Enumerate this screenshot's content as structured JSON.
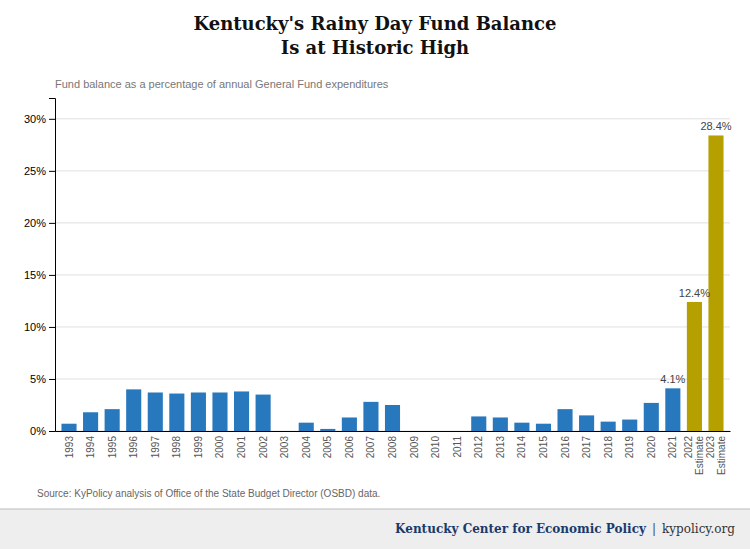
{
  "chart_data": {
    "type": "bar",
    "title": [
      "Kentucky's Rainy Day Fund Balance",
      "Is at Historic High"
    ],
    "subtitle": "Fund balance as a percentage of annual General Fund expenditures",
    "categories": [
      "1993",
      "1994",
      "1995",
      "1996",
      "1997",
      "1998",
      "1999",
      "2000",
      "2001",
      "2002",
      "2003",
      "2004",
      "2005",
      "2006",
      "2007",
      "2008",
      "2009",
      "2010",
      "2011",
      "2012",
      "2013",
      "2014",
      "2015",
      "2016",
      "2017",
      "2018",
      "2019",
      "2020",
      "2021",
      "2022\nEstimate",
      "2023\nEstimate"
    ],
    "values": [
      0.7,
      1.8,
      2.1,
      4.0,
      3.7,
      3.6,
      3.7,
      3.7,
      3.8,
      3.5,
      0.0,
      0.8,
      0.2,
      1.3,
      2.8,
      2.5,
      0.0,
      0.0,
      0.0,
      1.4,
      1.3,
      0.8,
      0.7,
      2.1,
      1.5,
      0.9,
      1.1,
      2.7,
      4.1,
      12.4,
      28.4
    ],
    "value_labels": [
      null,
      null,
      null,
      null,
      null,
      null,
      null,
      null,
      null,
      null,
      null,
      null,
      null,
      null,
      null,
      null,
      null,
      null,
      null,
      null,
      null,
      null,
      null,
      null,
      null,
      null,
      null,
      null,
      "4.1%",
      "12.4%",
      "28.4%"
    ],
    "colors": [
      "#2878bd",
      "#2878bd",
      "#2878bd",
      "#2878bd",
      "#2878bd",
      "#2878bd",
      "#2878bd",
      "#2878bd",
      "#2878bd",
      "#2878bd",
      "#2878bd",
      "#2878bd",
      "#2878bd",
      "#2878bd",
      "#2878bd",
      "#2878bd",
      "#2878bd",
      "#2878bd",
      "#2878bd",
      "#2878bd",
      "#2878bd",
      "#2878bd",
      "#2878bd",
      "#2878bd",
      "#2878bd",
      "#2878bd",
      "#2878bd",
      "#2878bd",
      "#2878bd",
      "#b5a000",
      "#b5a000"
    ],
    "ylim": [
      0,
      32
    ],
    "yticks": [
      {
        "value": 0,
        "label": "0%"
      },
      {
        "value": 5,
        "label": "5%"
      },
      {
        "value": 10,
        "label": "10%"
      },
      {
        "value": 15,
        "label": "15%"
      },
      {
        "value": 20,
        "label": "20%"
      },
      {
        "value": 25,
        "label": "25%"
      },
      {
        "value": 30,
        "label": "30%"
      }
    ],
    "grid": true,
    "annotations": [
      "Source: KyPolicy analysis of Office of the State Budget Director (OSBD) data.",
      "Kentucky Center for Economic Policy",
      "|",
      "kypolicy.org"
    ]
  }
}
